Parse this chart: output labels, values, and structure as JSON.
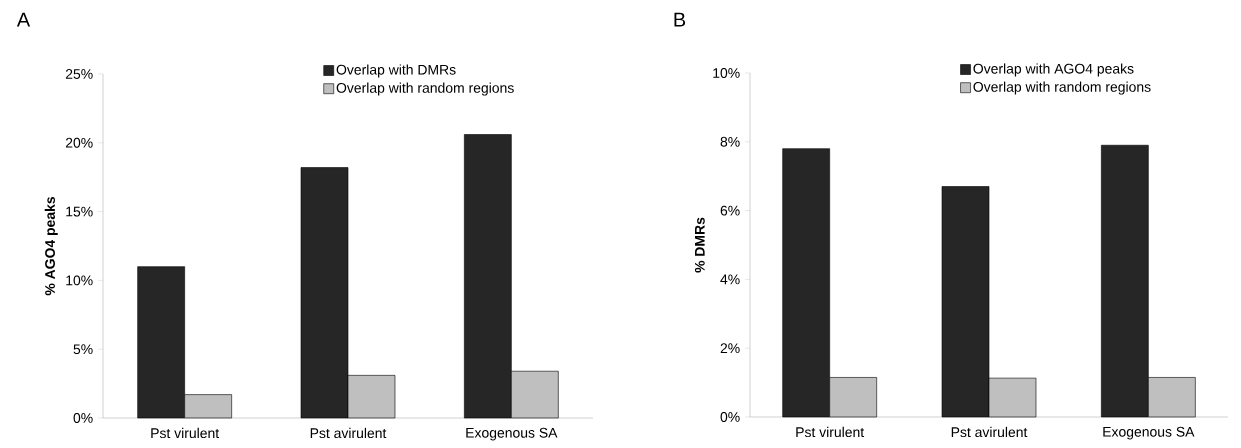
{
  "chart_data": [
    {
      "type": "bar",
      "title": "A",
      "ylabel": "% AGO4 peaks",
      "categories": [
        "Pst virulent",
        "Pst avirulent",
        "Exogenous SA"
      ],
      "series": [
        {
          "name": "Overlap with DMRs",
          "color": "#262626",
          "values": [
            11.0,
            18.2,
            20.6
          ]
        },
        {
          "name": "Overlap with random regions",
          "color": "#bfbfbf",
          "values": [
            1.7,
            3.1,
            3.4
          ]
        }
      ],
      "ylim": [
        0,
        25
      ],
      "yticks": [
        {
          "value": 0,
          "label": "0%"
        },
        {
          "value": 5,
          "label": "5%"
        },
        {
          "value": 10,
          "label": "10%"
        },
        {
          "value": 15,
          "label": "15%"
        },
        {
          "value": 20,
          "label": "20%"
        },
        {
          "value": 25,
          "label": "25%"
        }
      ],
      "legend": "top right",
      "grid": false
    },
    {
      "type": "bar",
      "title": "B",
      "ylabel": "% DMRs",
      "categories": [
        "Pst virulent",
        "Pst avirulent",
        "Exogenous SA"
      ],
      "series": [
        {
          "name": "Overlap with AGO4 peaks",
          "color": "#262626",
          "values": [
            7.8,
            6.7,
            7.9
          ]
        },
        {
          "name": "Overlap with random regions",
          "color": "#bfbfbf",
          "values": [
            1.15,
            1.13,
            1.15
          ]
        }
      ],
      "ylim": [
        0,
        10
      ],
      "yticks": [
        {
          "value": 0,
          "label": "0%"
        },
        {
          "value": 2,
          "label": "2%"
        },
        {
          "value": 4,
          "label": "4%"
        },
        {
          "value": 6,
          "label": "6%"
        },
        {
          "value": 8,
          "label": "8%"
        },
        {
          "value": 10,
          "label": "10%"
        }
      ],
      "legend": "top right",
      "grid": false
    }
  ]
}
